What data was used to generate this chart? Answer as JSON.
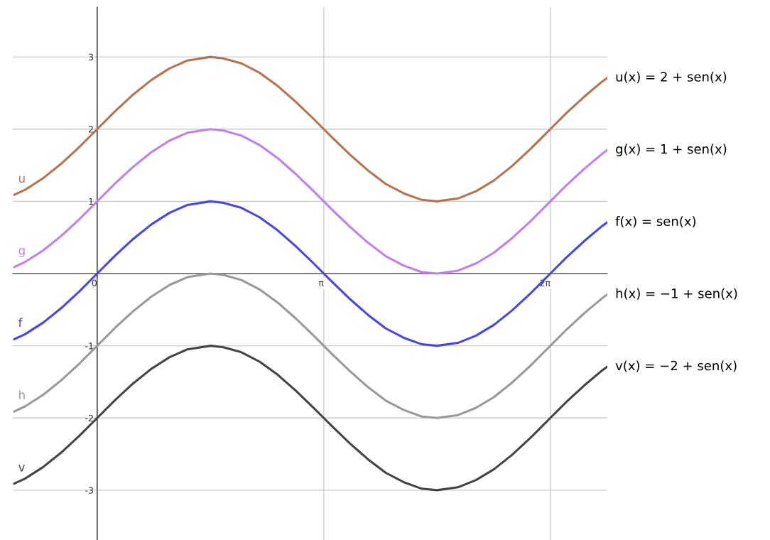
{
  "chart_data": {
    "type": "line",
    "x": [
      -1.15,
      -1,
      -0.75,
      -0.5,
      -0.25,
      0,
      0.25,
      0.5,
      0.75,
      1,
      1.25,
      1.57,
      1.75,
      2,
      2.25,
      2.5,
      2.75,
      3,
      3.14,
      3.25,
      3.5,
      3.75,
      4,
      4.25,
      4.5,
      4.71,
      5,
      5.25,
      5.5,
      5.75,
      6,
      6.28,
      6.5,
      6.75,
      7,
      7.07
    ],
    "series": [
      {
        "name": "u",
        "color": "#b5734f",
        "values": [
          1.09,
          1.16,
          1.32,
          1.52,
          1.75,
          2,
          2.25,
          2.48,
          2.68,
          2.84,
          2.95,
          3,
          2.98,
          2.91,
          2.78,
          2.6,
          2.38,
          2.14,
          2,
          1.89,
          1.65,
          1.43,
          1.24,
          1.11,
          1.02,
          1,
          1.04,
          1.14,
          1.29,
          1.49,
          1.72,
          2,
          2.22,
          2.45,
          2.66,
          2.71
        ]
      },
      {
        "name": "g",
        "color": "#c07ff0",
        "values": [
          0.09,
          0.16,
          0.32,
          0.52,
          0.75,
          1,
          1.25,
          1.48,
          1.68,
          1.84,
          1.95,
          2,
          1.98,
          1.91,
          1.78,
          1.6,
          1.38,
          1.14,
          1,
          0.89,
          0.65,
          0.43,
          0.24,
          0.11,
          0.02,
          0,
          0.04,
          0.14,
          0.29,
          0.49,
          0.72,
          1,
          1.22,
          1.45,
          1.66,
          1.71
        ]
      },
      {
        "name": "f",
        "color": "#4646e6",
        "values": [
          -0.91,
          -0.84,
          -0.68,
          -0.48,
          -0.25,
          0,
          0.25,
          0.48,
          0.68,
          0.84,
          0.95,
          1,
          0.98,
          0.91,
          0.78,
          0.6,
          0.38,
          0.14,
          0,
          -0.11,
          -0.35,
          -0.57,
          -0.76,
          -0.89,
          -0.98,
          -1,
          -0.96,
          -0.86,
          -0.71,
          -0.51,
          -0.28,
          0,
          0.22,
          0.45,
          0.66,
          0.71
        ]
      },
      {
        "name": "h",
        "color": "#999999",
        "values": [
          -1.91,
          -1.84,
          -1.68,
          -1.48,
          -1.25,
          -1,
          -0.75,
          -0.52,
          -0.32,
          -0.16,
          -0.05,
          0,
          -0.02,
          -0.09,
          -0.22,
          -0.4,
          -0.62,
          -0.86,
          -1,
          -1.11,
          -1.35,
          -1.57,
          -1.76,
          -1.89,
          -1.98,
          -2,
          -1.96,
          -1.86,
          -1.71,
          -1.51,
          -1.28,
          -1,
          -0.78,
          -0.55,
          -0.34,
          -0.29
        ]
      },
      {
        "name": "v",
        "color": "#444444",
        "values": [
          -2.91,
          -2.84,
          -2.68,
          -2.48,
          -2.25,
          -2,
          -1.75,
          -1.52,
          -1.32,
          -1.16,
          -1.05,
          -1,
          -1.02,
          -1.09,
          -1.22,
          -1.4,
          -1.62,
          -1.86,
          -2,
          -2.11,
          -2.35,
          -2.57,
          -2.76,
          -2.89,
          -2.98,
          -3,
          -2.96,
          -2.86,
          -2.71,
          -2.51,
          -2.28,
          -2,
          -1.78,
          -1.55,
          -1.34,
          -1.29
        ]
      }
    ],
    "annotations": [
      "u(x) = 2 + sen(x)",
      "g(x) = 1 + sen(x)",
      "f(x) = sen(x)",
      "h(x) = −1 + sen(x)",
      "v(x) = −2 + sen(x)"
    ],
    "xlim": [
      -1.17,
      7.07
    ],
    "ylim": [
      -3.69,
      3.69
    ],
    "xticks": [
      {
        "value": 0,
        "label": "0"
      },
      {
        "value": 3.14159,
        "label": "π"
      },
      {
        "value": 6.28319,
        "label": "2π"
      }
    ],
    "yticks": [
      -3,
      -2,
      -1,
      1,
      2,
      3
    ],
    "grid": true,
    "legend": false,
    "marker": "none",
    "line_style": "solid"
  }
}
